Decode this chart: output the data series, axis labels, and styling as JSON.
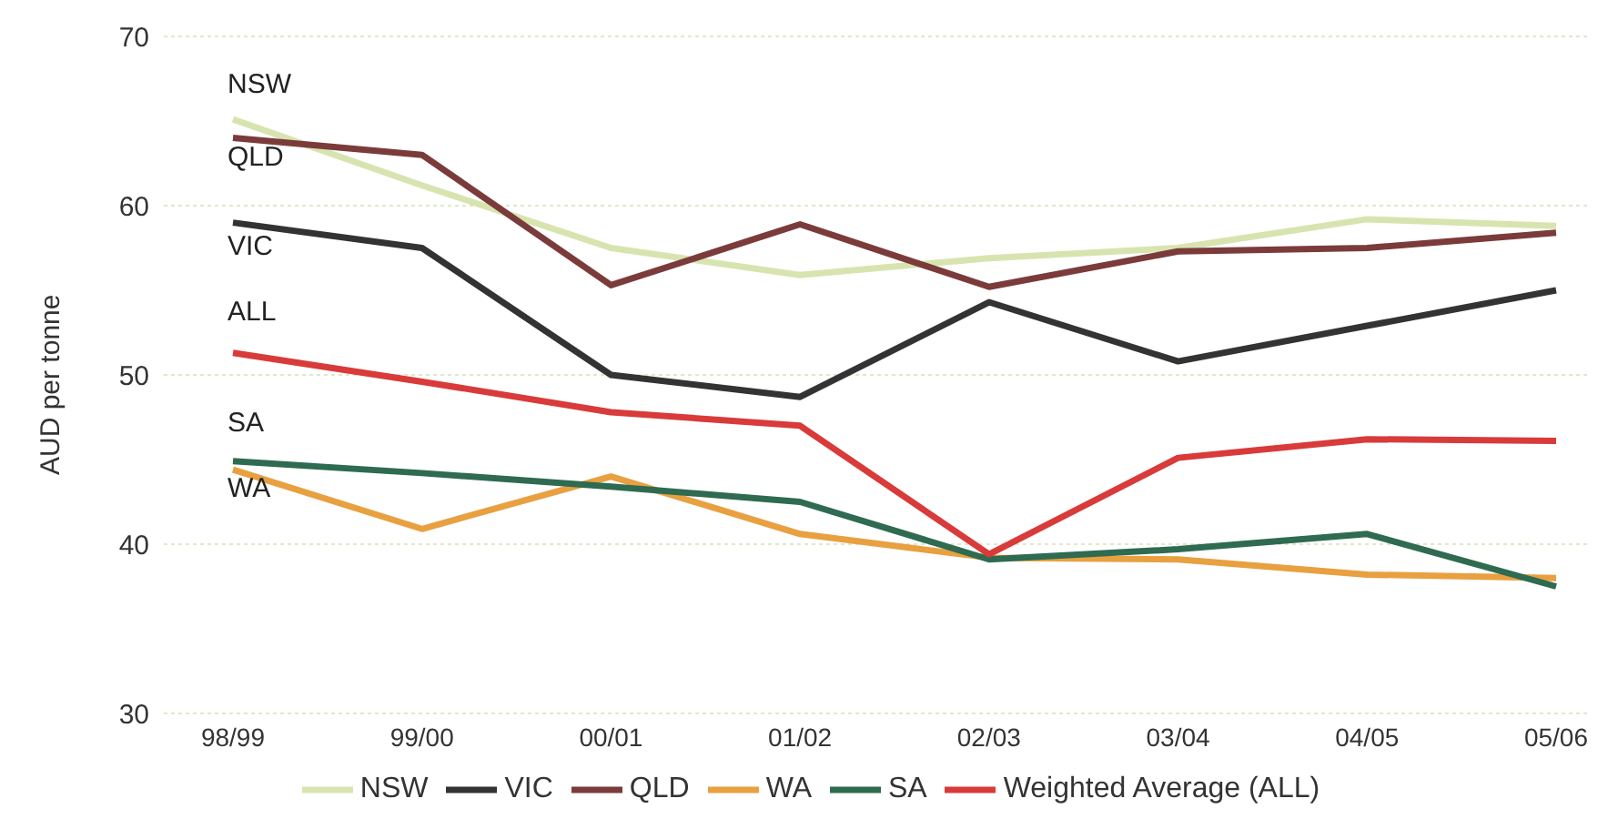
{
  "chart_data": {
    "type": "line",
    "ylabel": "AUD per tonne",
    "categories": [
      "98/99",
      "99/00",
      "00/01",
      "01/02",
      "02/03",
      "03/04",
      "04/05",
      "05/06"
    ],
    "ylim": [
      30,
      70
    ],
    "yticks": [
      30,
      40,
      50,
      60,
      70
    ],
    "grid": "y",
    "legend": "bottom",
    "marker": "none",
    "line_style": "solid",
    "series": [
      {
        "name": "NSW",
        "color": "#d8e4b0",
        "values": [
          65.1,
          61.2,
          57.5,
          55.9,
          56.9,
          57.5,
          59.2,
          58.8
        ]
      },
      {
        "name": "VIC",
        "color": "#333333",
        "values": [
          59.0,
          57.5,
          50.0,
          48.7,
          54.3,
          50.8,
          52.9,
          55.0
        ]
      },
      {
        "name": "QLD",
        "color": "#7b3b3b",
        "values": [
          64.0,
          63.0,
          55.3,
          58.9,
          55.2,
          57.3,
          57.5,
          58.4
        ]
      },
      {
        "name": "WA",
        "color": "#e8a040",
        "values": [
          44.4,
          40.9,
          44.0,
          40.6,
          39.2,
          39.1,
          38.2,
          38.0
        ]
      },
      {
        "name": "SA",
        "color": "#2e6b50",
        "values": [
          44.9,
          44.2,
          43.4,
          42.5,
          39.1,
          39.7,
          40.6,
          37.5
        ]
      },
      {
        "name": "Weighted Average (ALL)",
        "color": "#d93a3a",
        "values": [
          51.3,
          49.6,
          47.8,
          47.0,
          39.4,
          45.1,
          46.2,
          46.1
        ]
      }
    ],
    "annotations": [
      "NSW",
      "QLD",
      "VIC",
      "ALL",
      "SA",
      "WA"
    ]
  }
}
